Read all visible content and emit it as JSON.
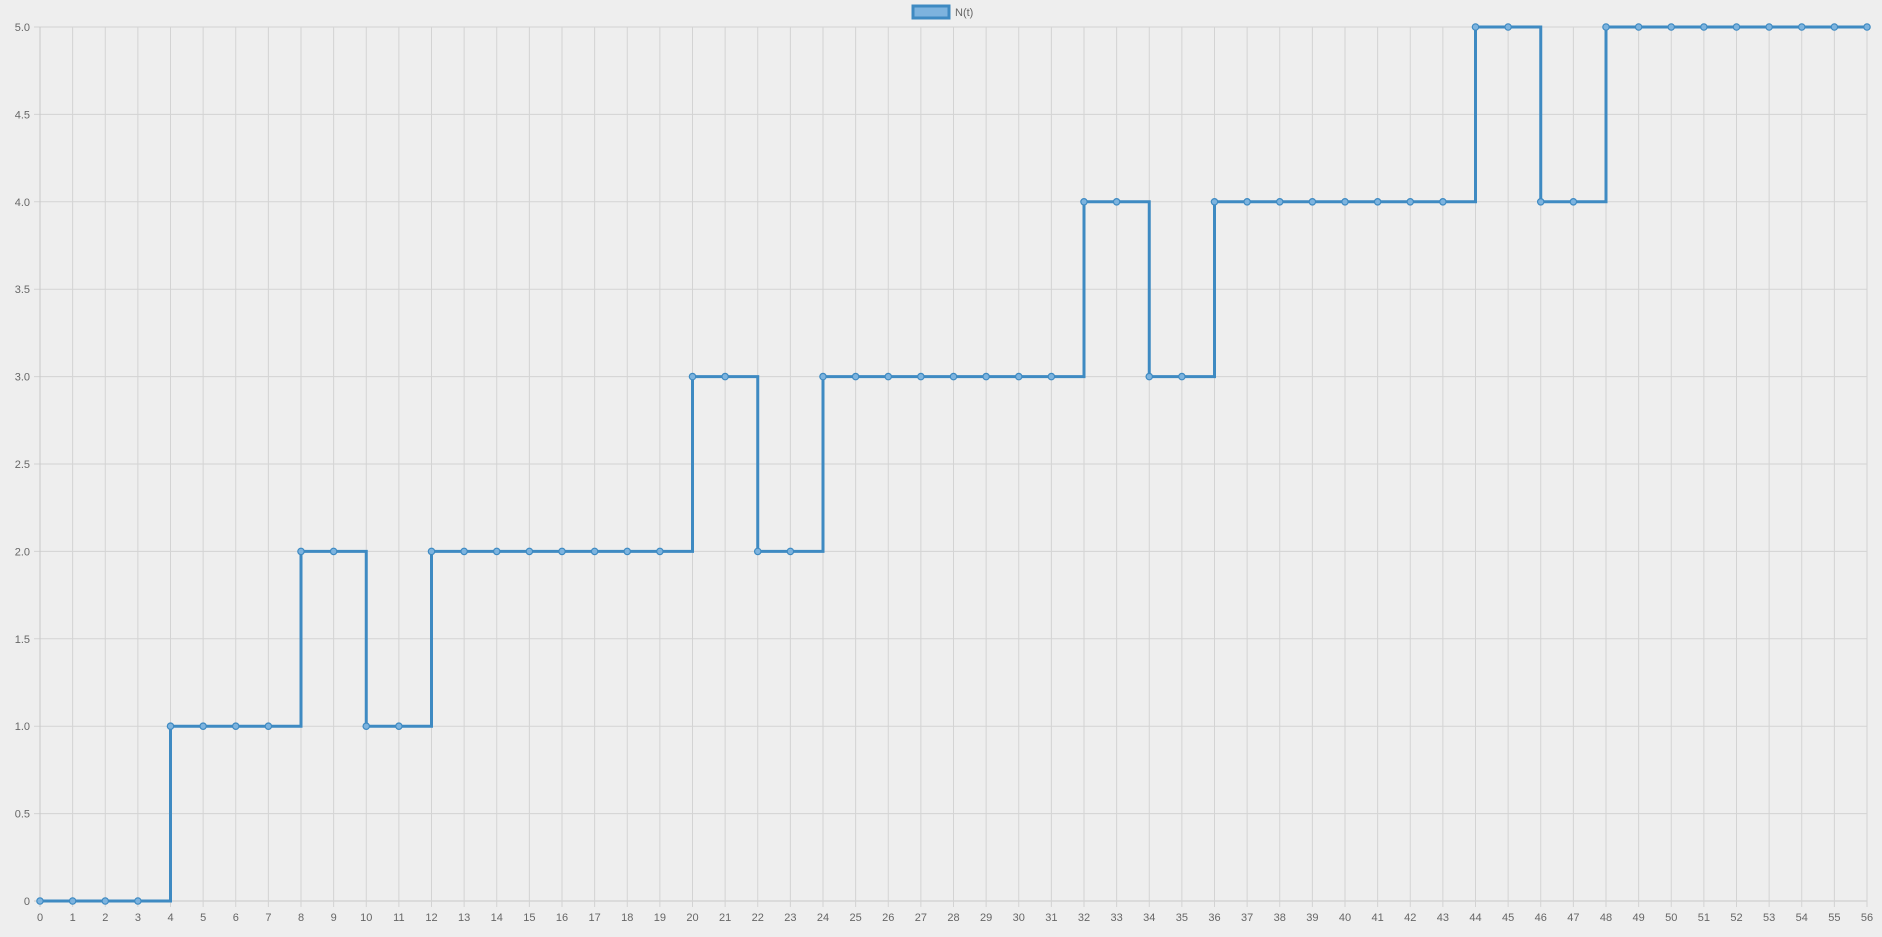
{
  "chart_data": {
    "type": "line",
    "stepped": true,
    "title": "",
    "xlabel": "",
    "ylabel": "",
    "categories": [
      "0",
      "1",
      "2",
      "3",
      "4",
      "5",
      "6",
      "7",
      "8",
      "9",
      "10",
      "11",
      "12",
      "13",
      "14",
      "15",
      "16",
      "17",
      "18",
      "19",
      "20",
      "21",
      "22",
      "23",
      "24",
      "25",
      "26",
      "27",
      "28",
      "29",
      "30",
      "31",
      "32",
      "33",
      "34",
      "35",
      "36",
      "37",
      "38",
      "39",
      "40",
      "41",
      "42",
      "43",
      "44",
      "45",
      "46",
      "47",
      "48",
      "49",
      "50",
      "51",
      "52",
      "53",
      "54",
      "55",
      "56"
    ],
    "series": [
      {
        "name": "N(t)",
        "color": "#3e8ac2",
        "fill": "#7db3de",
        "values": [
          0,
          0,
          0,
          0,
          1,
          1,
          1,
          1,
          2,
          2,
          1,
          1,
          2,
          2,
          2,
          2,
          2,
          2,
          2,
          2,
          3,
          3,
          2,
          2,
          3,
          3,
          3,
          3,
          3,
          3,
          3,
          3,
          4,
          4,
          3,
          3,
          4,
          4,
          4,
          4,
          4,
          4,
          4,
          4,
          5,
          5,
          4,
          4,
          5,
          5,
          5,
          5,
          5,
          5,
          5,
          5,
          5
        ]
      }
    ],
    "ylim": [
      0,
      5
    ],
    "yticks": [
      "0",
      "0.5",
      "1.0",
      "1.5",
      "2.0",
      "2.5",
      "3.0",
      "3.5",
      "4.0",
      "4.5",
      "5.0"
    ],
    "grid": true,
    "legend": "top-center"
  }
}
